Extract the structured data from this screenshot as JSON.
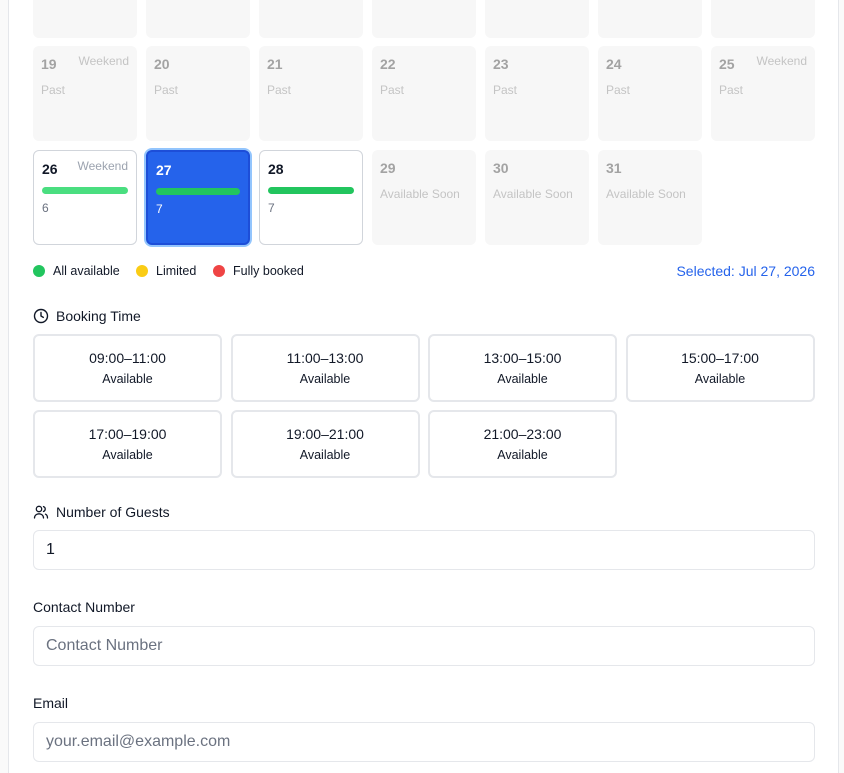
{
  "calendar": {
    "days": [
      {
        "day": "19",
        "tag": "Weekend",
        "note": "Past"
      },
      {
        "day": "20",
        "note": "Past"
      },
      {
        "day": "21",
        "note": "Past"
      },
      {
        "day": "22",
        "note": "Past"
      },
      {
        "day": "23",
        "note": "Past"
      },
      {
        "day": "24",
        "note": "Past"
      },
      {
        "day": "25",
        "tag": "Weekend",
        "note": "Past"
      },
      {
        "day": "26",
        "tag": "Weekend",
        "count": "6"
      },
      {
        "day": "27",
        "count": "7"
      },
      {
        "day": "28",
        "count": "7"
      },
      {
        "day": "29",
        "note": "Available Soon"
      },
      {
        "day": "30",
        "note": "Available Soon"
      },
      {
        "day": "31",
        "note": "Available Soon"
      }
    ],
    "legend": [
      "All available",
      "Limited",
      "Fully booked"
    ],
    "selected": "Selected: Jul 27, 2026"
  },
  "booking_time": {
    "label": "Booking Time",
    "slots": [
      {
        "time": "09:00–11:00",
        "status": "Available"
      },
      {
        "time": "11:00–13:00",
        "status": "Available"
      },
      {
        "time": "13:00–15:00",
        "status": "Available"
      },
      {
        "time": "15:00–17:00",
        "status": "Available"
      },
      {
        "time": "17:00–19:00",
        "status": "Available"
      },
      {
        "time": "19:00–21:00",
        "status": "Available"
      },
      {
        "time": "21:00–23:00",
        "status": "Available"
      }
    ]
  },
  "guests": {
    "label": "Number of Guests",
    "value": "1"
  },
  "contact": {
    "label": "Contact Number",
    "placeholder": "Contact Number"
  },
  "email": {
    "label": "Email",
    "placeholder": "your.email@example.com"
  }
}
